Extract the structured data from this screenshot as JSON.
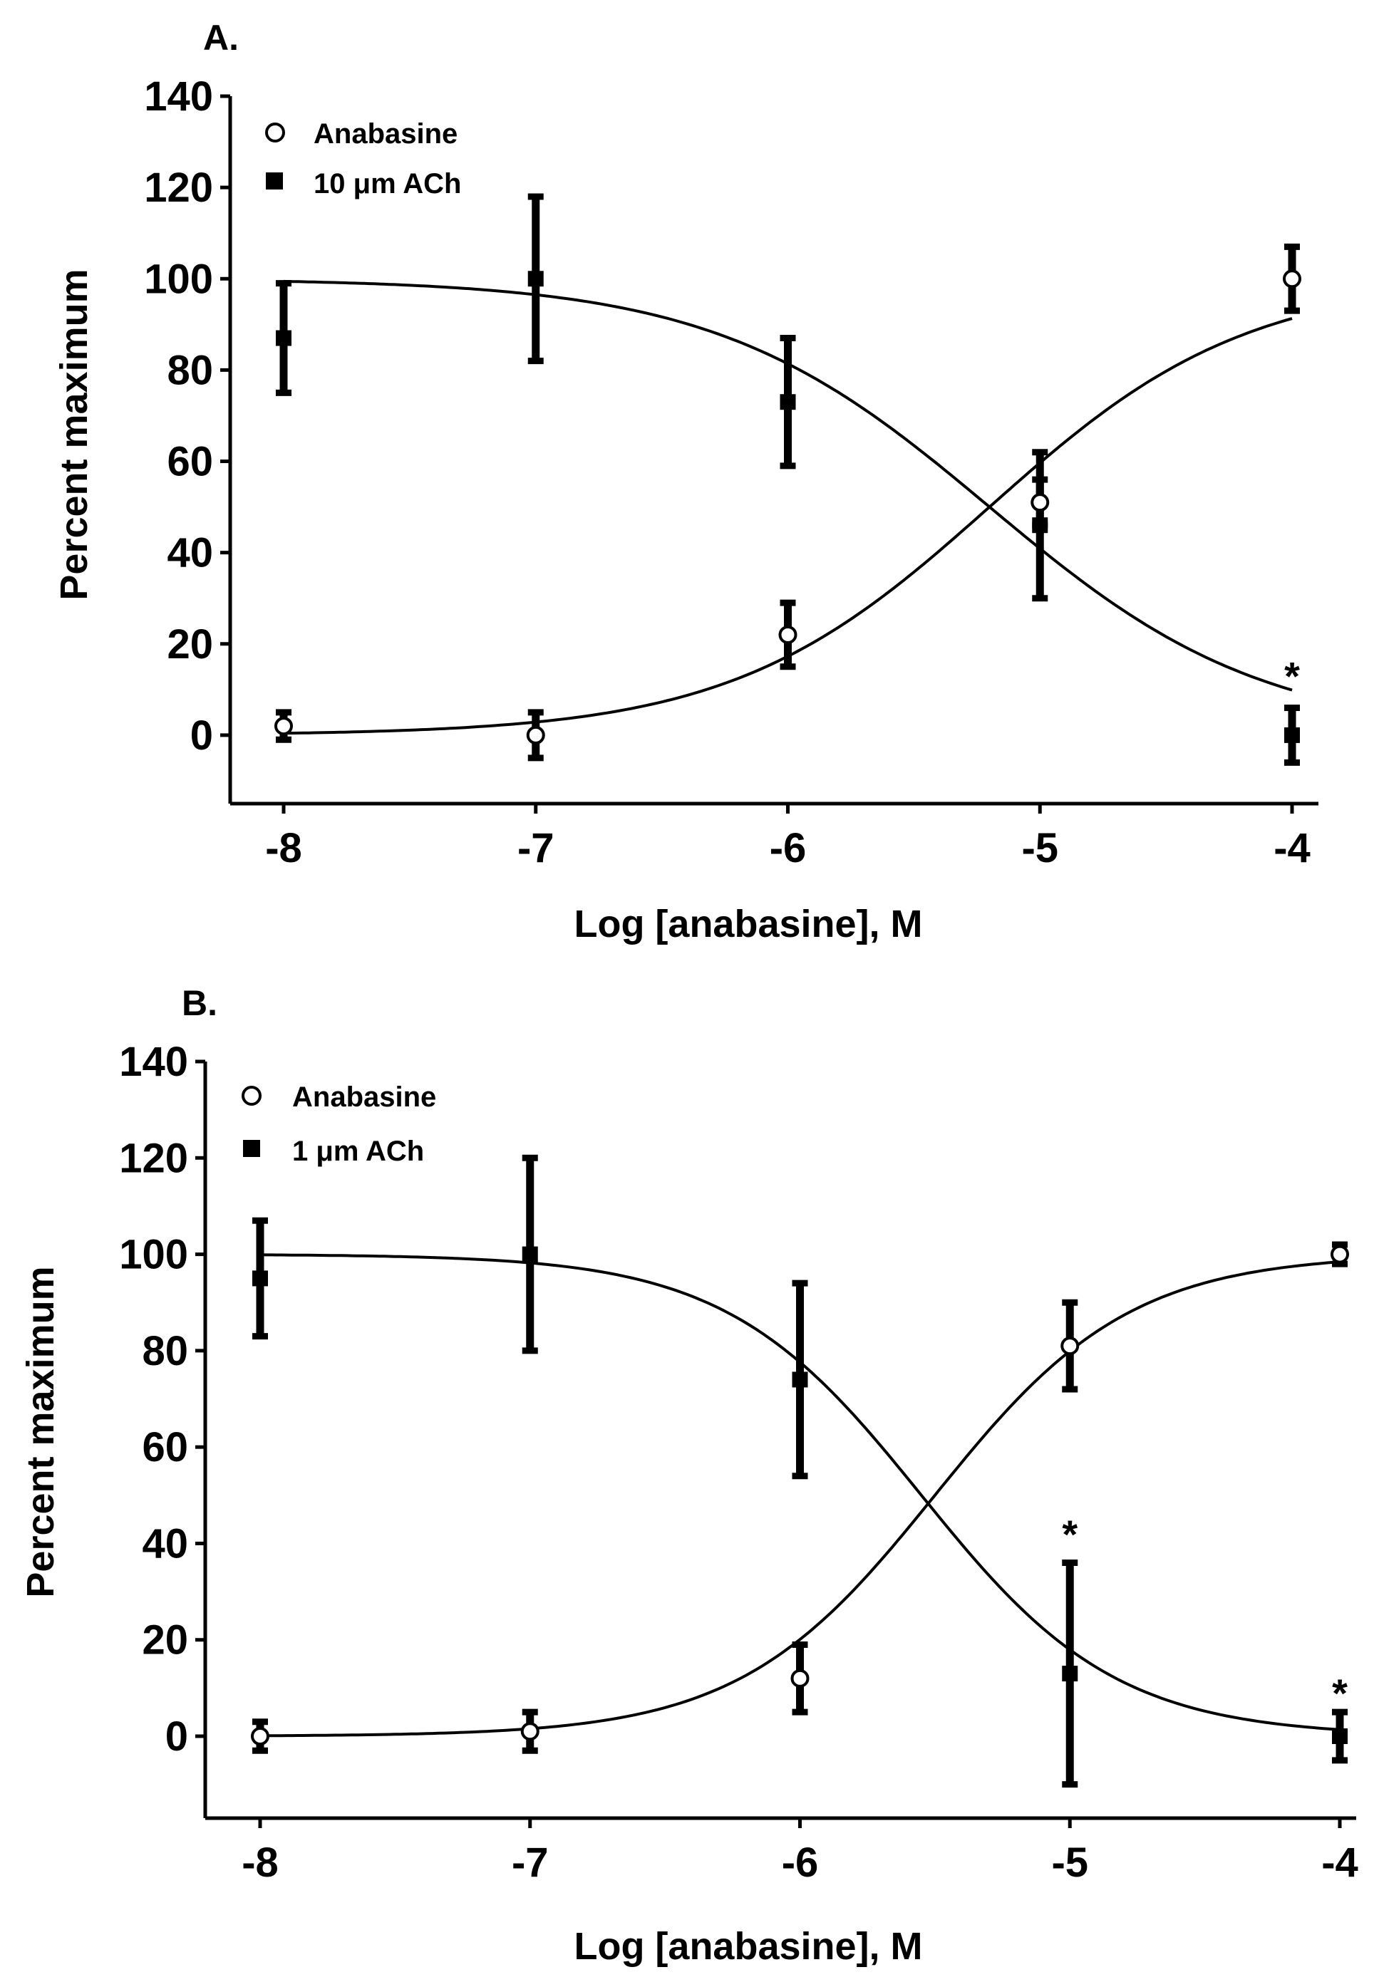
{
  "chart_data": [
    {
      "type": "scatter",
      "panel": "A.",
      "xlabel": "Log [anabasine], M",
      "ylabel": "Percent maximum",
      "xlim": [
        -8.2,
        -3.9
      ],
      "ylim": [
        -15,
        140
      ],
      "xticks": [
        -8,
        -7,
        -6,
        -5,
        -4
      ],
      "yticks": [
        0,
        20,
        40,
        60,
        80,
        100,
        120,
        140
      ],
      "xtick_labels": [
        "-8",
        "-7",
        "-6",
        "-5",
        "-4"
      ],
      "ytick_labels": [
        "0",
        "20",
        "40",
        "60",
        "80",
        "100",
        "120",
        "140"
      ],
      "legend_position": "top-left",
      "series": [
        {
          "name": "Anabasine",
          "marker": "open-circle",
          "x": [
            -8,
            -7,
            -6,
            -5,
            -4
          ],
          "y": [
            2,
            0,
            22,
            51,
            100
          ],
          "err": [
            3,
            5,
            7,
            5,
            7
          ],
          "fit": {
            "top": 100,
            "bottom": 0,
            "logEC50": -5.2,
            "hill": 0.85
          }
        },
        {
          "name": "10 μm ACh",
          "marker": "filled-square",
          "x": [
            -8,
            -7,
            -6,
            -5,
            -4
          ],
          "y": [
            87,
            100,
            73,
            46,
            0
          ],
          "err": [
            12,
            18,
            14,
            16,
            6
          ],
          "fit": {
            "top": 100,
            "bottom": 0,
            "logEC50": -5.2,
            "hill": -0.8
          }
        }
      ],
      "annotations": [
        {
          "text": "*",
          "x": -4,
          "y": 13
        }
      ]
    },
    {
      "type": "scatter",
      "panel": "B.",
      "xlabel": "Log [anabasine], M",
      "ylabel": "Percent maximum",
      "xlim": [
        -8.2,
        -3.95
      ],
      "ylim": [
        -17,
        140
      ],
      "xticks": [
        -8,
        -7,
        -6,
        -5,
        -4
      ],
      "yticks": [
        0,
        20,
        40,
        60,
        80,
        100,
        120,
        140
      ],
      "xtick_labels": [
        "-8",
        "-7",
        "-6",
        "-5",
        "-4"
      ],
      "ytick_labels": [
        "0",
        "20",
        "40",
        "60",
        "80",
        "100",
        "120",
        "140"
      ],
      "legend_position": "top-left",
      "series": [
        {
          "name": "Anabasine",
          "marker": "open-circle",
          "x": [
            -8,
            -7,
            -6,
            -5,
            -4
          ],
          "y": [
            0,
            1,
            12,
            81,
            100
          ],
          "err": [
            3,
            4,
            7,
            9,
            2
          ],
          "fit": {
            "top": 100,
            "bottom": 0,
            "logEC50": -5.5,
            "hill": 1.2
          }
        },
        {
          "name": "1 μm ACh",
          "marker": "filled-square",
          "x": [
            -8,
            -7,
            -6,
            -5,
            -4
          ],
          "y": [
            95,
            100,
            74,
            13,
            0
          ],
          "err": [
            12,
            20,
            20,
            23,
            5
          ],
          "fit": {
            "top": 100,
            "bottom": 0,
            "logEC50": -5.55,
            "hill": -1.2
          }
        }
      ],
      "annotations": [
        {
          "text": "*",
          "x": -5,
          "y": 42
        },
        {
          "text": "*",
          "x": -4,
          "y": 9
        }
      ]
    }
  ]
}
